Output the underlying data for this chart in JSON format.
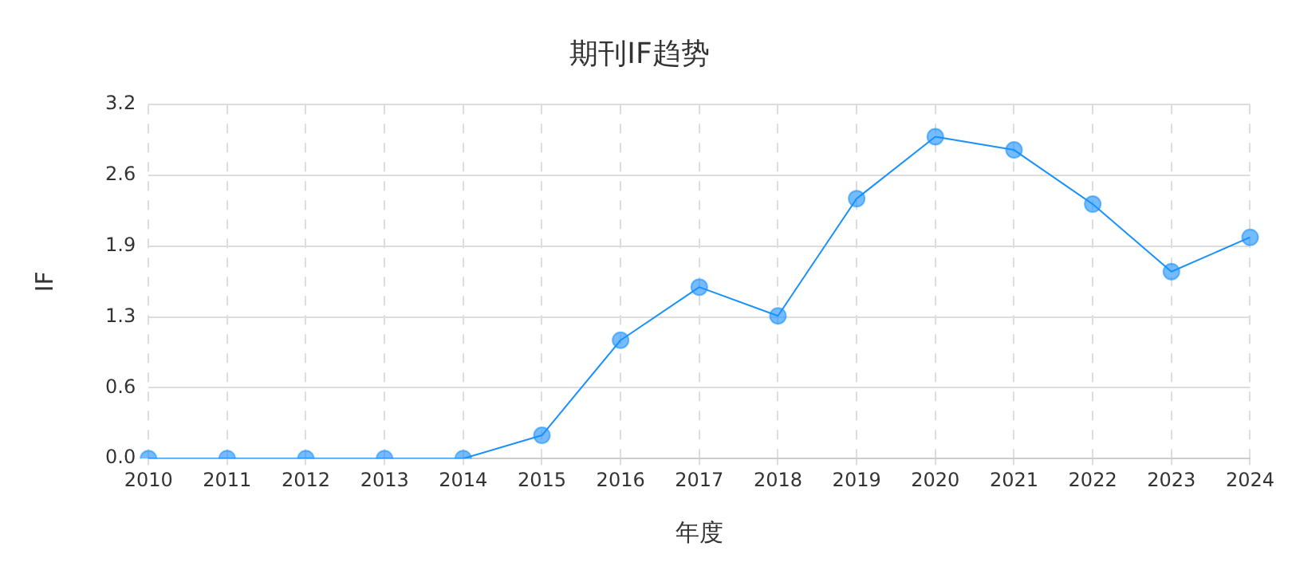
{
  "chart_data": {
    "type": "line",
    "title": "期刊IF趋势",
    "xlabel": "年度",
    "ylabel": "IF",
    "categories": [
      "2010",
      "2011",
      "2012",
      "2013",
      "2014",
      "2015",
      "2016",
      "2017",
      "2018",
      "2019",
      "2020",
      "2021",
      "2022",
      "2023",
      "2024"
    ],
    "series": [
      {
        "color": "#1890ff",
        "values": [
          0,
          0,
          0,
          0,
          0,
          0.21,
          1.07,
          1.55,
          1.29,
          2.35,
          2.91,
          2.79,
          2.3,
          1.69,
          2.0
        ]
      }
    ],
    "ylim": [
      0,
      3.2
    ],
    "yticks": [
      {
        "value": 0,
        "label": "0.0"
      },
      {
        "value": 0.64,
        "label": "0.6"
      },
      {
        "value": 1.28,
        "label": "1.3"
      },
      {
        "value": 1.92,
        "label": "1.9"
      },
      {
        "value": 2.56,
        "label": "2.6"
      },
      {
        "value": 3.2,
        "label": "3.2"
      }
    ],
    "grid": true,
    "marker": "circle",
    "line_style": "solid",
    "legend": false
  }
}
